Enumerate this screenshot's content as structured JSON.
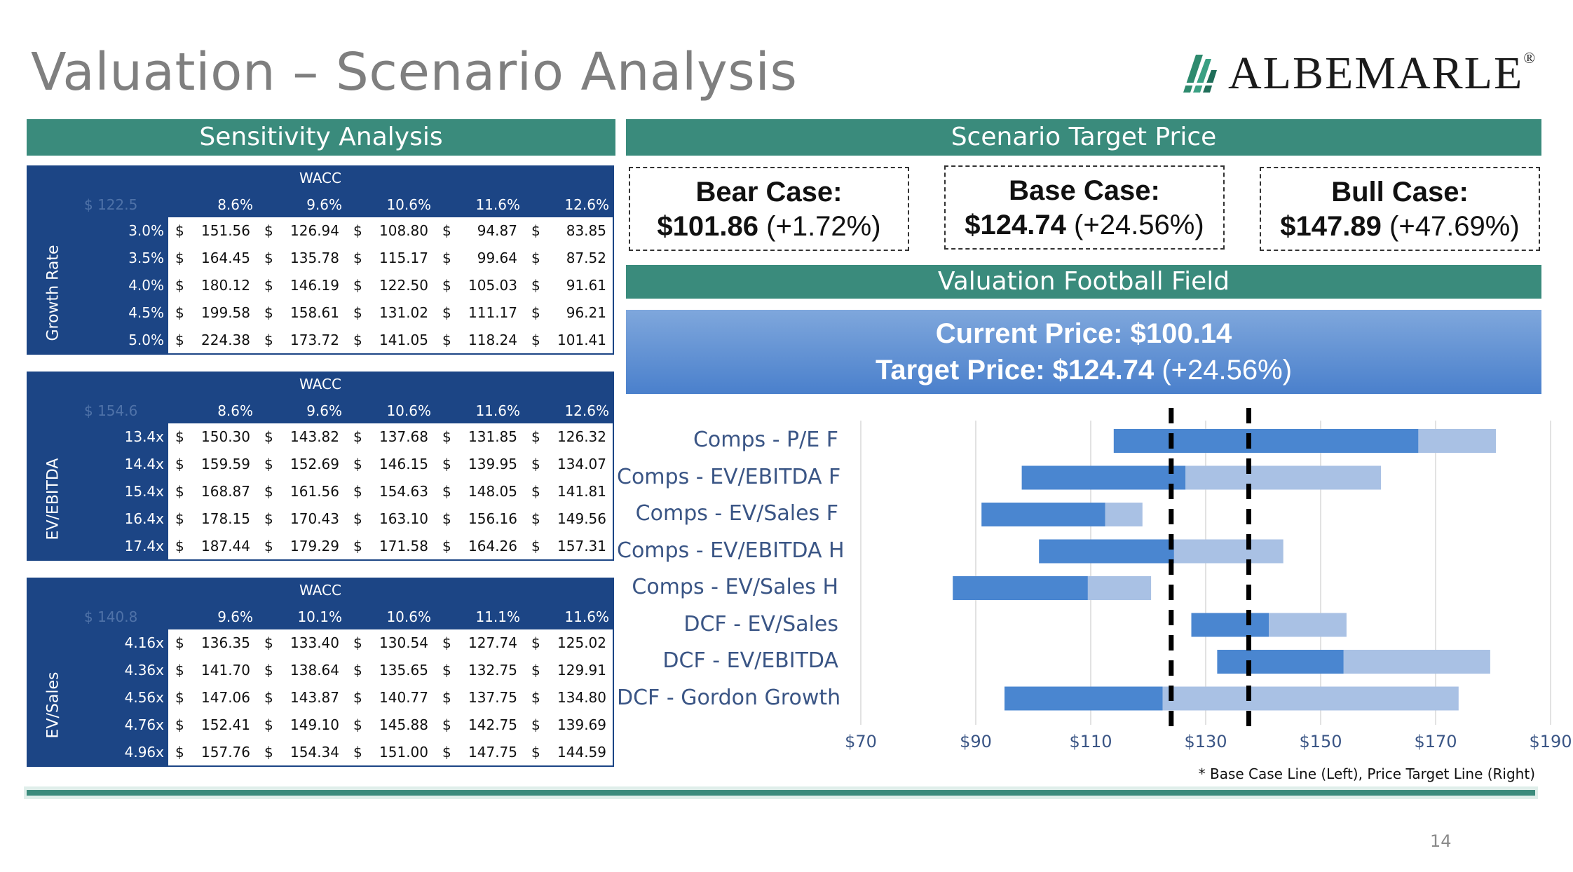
{
  "title": "Valuation – Scenario Analysis",
  "logo": {
    "text": "ALBEMARLE",
    "reg": "®",
    "icon": "albemarle-logo-icon"
  },
  "sections": {
    "sensitivity": "Sensitivity Analysis",
    "scenario": "Scenario Target Price",
    "football": "Valuation Football Field"
  },
  "tables": [
    {
      "wacc_label": "WACC",
      "corner": "$ 122.5",
      "row_title": "Growth Rate",
      "columns": [
        "8.6%",
        "9.6%",
        "10.6%",
        "11.6%",
        "12.6%"
      ],
      "rows": [
        {
          "label": "3.0%",
          "values": [
            "151.56",
            "126.94",
            "108.80",
            "94.87",
            "83.85"
          ]
        },
        {
          "label": "3.5%",
          "values": [
            "164.45",
            "135.78",
            "115.17",
            "99.64",
            "87.52"
          ]
        },
        {
          "label": "4.0%",
          "values": [
            "180.12",
            "146.19",
            "122.50",
            "105.03",
            "91.61"
          ]
        },
        {
          "label": "4.5%",
          "values": [
            "199.58",
            "158.61",
            "131.02",
            "111.17",
            "96.21"
          ]
        },
        {
          "label": "5.0%",
          "values": [
            "224.38",
            "173.72",
            "141.05",
            "118.24",
            "101.41"
          ]
        }
      ]
    },
    {
      "wacc_label": "WACC",
      "corner": "$ 154.6",
      "row_title": "EV/EBITDA",
      "columns": [
        "8.6%",
        "9.6%",
        "10.6%",
        "11.6%",
        "12.6%"
      ],
      "rows": [
        {
          "label": "13.4x",
          "values": [
            "150.30",
            "143.82",
            "137.68",
            "131.85",
            "126.32"
          ]
        },
        {
          "label": "14.4x",
          "values": [
            "159.59",
            "152.69",
            "146.15",
            "139.95",
            "134.07"
          ]
        },
        {
          "label": "15.4x",
          "values": [
            "168.87",
            "161.56",
            "154.63",
            "148.05",
            "141.81"
          ]
        },
        {
          "label": "16.4x",
          "values": [
            "178.15",
            "170.43",
            "163.10",
            "156.16",
            "149.56"
          ]
        },
        {
          "label": "17.4x",
          "values": [
            "187.44",
            "179.29",
            "171.58",
            "164.26",
            "157.31"
          ]
        }
      ]
    },
    {
      "wacc_label": "WACC",
      "corner": "$ 140.8",
      "row_title": "EV/Sales",
      "columns": [
        "9.6%",
        "10.1%",
        "10.6%",
        "11.1%",
        "11.6%"
      ],
      "rows": [
        {
          "label": "4.16x",
          "values": [
            "136.35",
            "133.40",
            "130.54",
            "127.74",
            "125.02"
          ]
        },
        {
          "label": "4.36x",
          "values": [
            "141.70",
            "138.64",
            "135.65",
            "132.75",
            "129.91"
          ]
        },
        {
          "label": "4.56x",
          "values": [
            "147.06",
            "143.87",
            "140.77",
            "137.75",
            "134.80"
          ]
        },
        {
          "label": "4.76x",
          "values": [
            "152.41",
            "149.10",
            "145.88",
            "142.75",
            "139.69"
          ]
        },
        {
          "label": "4.96x",
          "values": [
            "157.76",
            "154.34",
            "151.00",
            "147.75",
            "144.59"
          ]
        }
      ]
    }
  ],
  "cases": [
    {
      "label": "Bear Case:",
      "price": "$101.86",
      "change": "(+1.72%)"
    },
    {
      "label": "Base Case:",
      "price": "$124.74",
      "change": "(+24.56%)"
    },
    {
      "label": "Bull Case:",
      "price": "$147.89",
      "change": "(+47.69%)"
    }
  ],
  "current_price": {
    "label": "Current Price:",
    "value": "$100.14"
  },
  "target_price": {
    "label": "Target Price:",
    "value": "$124.74",
    "change": "(+24.56%)"
  },
  "chart_data": {
    "type": "bar",
    "subtype": "floating-stacked-horizontal",
    "categories": [
      "Comps - P/E F",
      "Comps - EV/EBITDA F",
      "Comps - EV/Sales F",
      "Comps - EV/EBITDA H",
      "Comps - EV/Sales H",
      "DCF - EV/Sales",
      "DCF - EV/EBITDA",
      "DCF - Gordon Growth"
    ],
    "series": [
      {
        "values_low": [
          114,
          98,
          91,
          101,
          86,
          127.5,
          132,
          95
        ],
        "values_mid": [
          167,
          126.5,
          112.5,
          124.5,
          109.5,
          141,
          154,
          122.5
        ],
        "values_high": [
          180.5,
          160.5,
          119,
          143.5,
          120.5,
          154.5,
          179.5,
          174
        ]
      }
    ],
    "xlim": [
      70,
      190
    ],
    "xticks": [
      "$70",
      "$90",
      "$110",
      "$130",
      "$150",
      "$170",
      "$190"
    ],
    "reference_lines": [
      124,
      137.5
    ],
    "colors": {
      "dark": "#4a86d0",
      "light": "#a9c1e4",
      "grid": "#e2e2e2",
      "ref": "#000000"
    },
    "note": "* Base Case Line (Left), Price Target Line (Right)"
  },
  "page_number": "14"
}
